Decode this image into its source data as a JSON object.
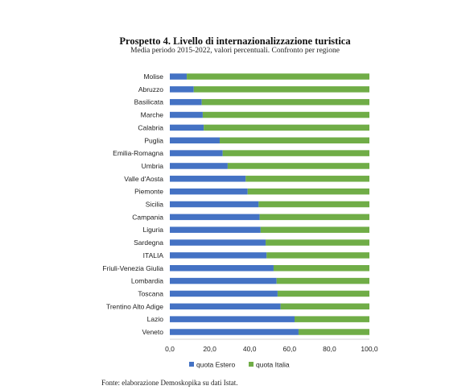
{
  "chart_data": {
    "type": "bar",
    "orientation": "horizontal",
    "stacked": true,
    "title": "Prospetto 4. Livello di internazionalizzazione turistica",
    "subtitle": "Media periodo 2015-2022, valori percentuali. Confronto per regione",
    "categories": [
      "Molise",
      "Abruzzo",
      "Basilicata",
      "Marche",
      "Calabria",
      "Puglia",
      "Emilia-Romagna",
      "Umbria",
      "Valle d'Aosta",
      "Piemonte",
      "Sicilia",
      "Campania",
      "Liguria",
      "Sardegna",
      "ITALIA",
      "Friuli-Venezia Giulia",
      "Lombardia",
      "Toscana",
      "Trentino Alto Adige",
      "Lazio",
      "Veneto"
    ],
    "series": [
      {
        "name": "quota Estero",
        "color": "#4472C4",
        "values": [
          8.5,
          12.0,
          16.0,
          16.5,
          17.0,
          25.0,
          26.5,
          29.0,
          38.0,
          39.0,
          44.5,
          45.0,
          45.5,
          48.0,
          48.5,
          52.0,
          53.5,
          54.0,
          55.5,
          62.5,
          64.5
        ]
      },
      {
        "name": "quota Italia",
        "color": "#70AD47",
        "values": [
          91.5,
          88.0,
          84.0,
          83.5,
          83.0,
          75.0,
          73.5,
          71.0,
          62.0,
          61.0,
          55.5,
          55.0,
          54.5,
          52.0,
          51.5,
          48.0,
          46.5,
          46.0,
          44.5,
          37.5,
          35.5
        ]
      }
    ],
    "xlim": [
      0,
      100
    ],
    "xticks": [
      "0,0",
      "20,0",
      "40,0",
      "60,0",
      "80,0",
      "100,0"
    ],
    "xlabel": "",
    "ylabel": "",
    "grid": false,
    "legend_position": "bottom"
  },
  "source": "Fonte: elaborazione Demoskopika su dati Istat."
}
